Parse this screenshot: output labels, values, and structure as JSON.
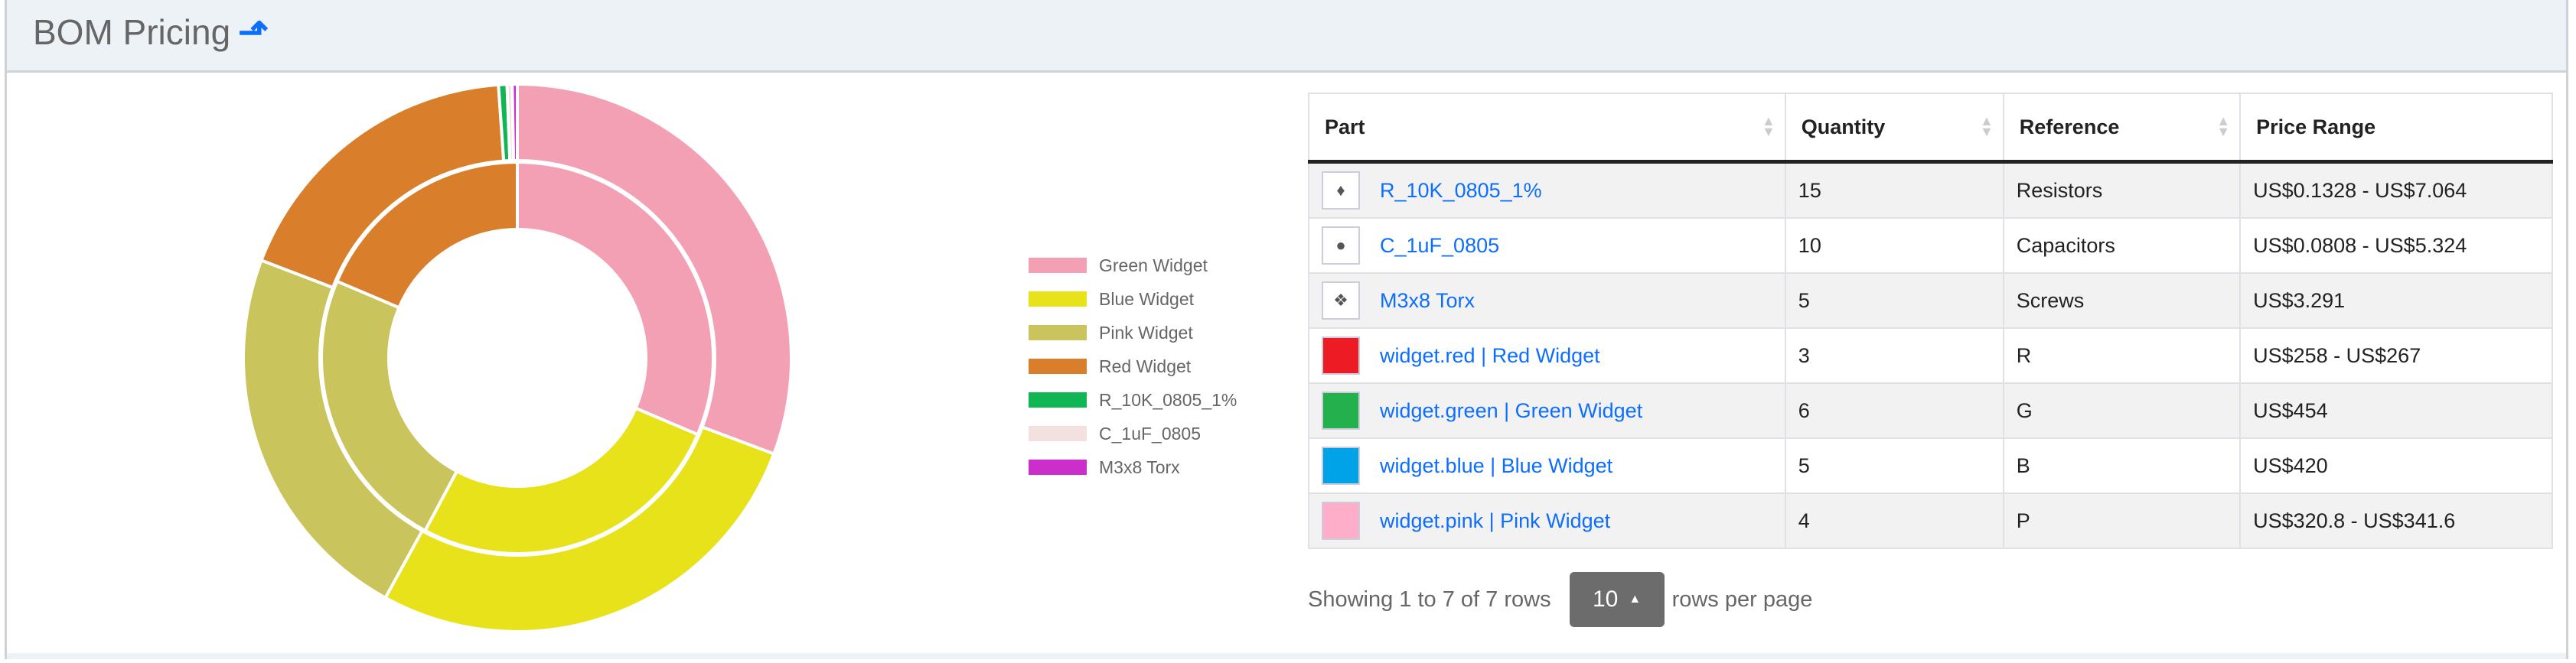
{
  "header": {
    "title": "BOM Pricing",
    "title_icon": "sort-arrow-up-icon"
  },
  "chart_data": {
    "type": "pie",
    "variant": "double-donut",
    "legend_position": "right",
    "legend": [
      {
        "label": "Green Widget",
        "color": "#f3a0b5"
      },
      {
        "label": "Blue Widget",
        "color": "#e8e21a"
      },
      {
        "label": "Pink Widget",
        "color": "#c9c55c"
      },
      {
        "label": "Red Widget",
        "color": "#d97e2a"
      },
      {
        "label": "R_10K_0805_1%",
        "color": "#10b554"
      },
      {
        "label": "C_1uF_0805",
        "color": "#f3e1e0"
      },
      {
        "label": "M3x8 Torx",
        "color": "#cc2ecc"
      }
    ],
    "outer_ring": {
      "labels": [
        "Green Widget",
        "Blue Widget",
        "Pink Widget",
        "Red Widget",
        "R_10K_0805_1%",
        "C_1uF_0805",
        "M3x8 Torx"
      ],
      "values": [
        30.7,
        27.3,
        22.8,
        18.1,
        0.5,
        0.3,
        0.3
      ]
    },
    "inner_ring": {
      "labels": [
        "Green Widget",
        "Blue Widget",
        "Pink Widget",
        "Red Widget"
      ],
      "values": [
        31.4,
        26.4,
        23.6,
        18.6
      ]
    }
  },
  "table": {
    "columns": [
      "Part",
      "Quantity",
      "Reference",
      "Price Range"
    ],
    "rows": [
      {
        "thumb": "resistor-image",
        "thumb_color": "",
        "part": "R_10K_0805_1%",
        "quantity": "15",
        "reference": "Resistors",
        "price": "US$0.1328 - US$7.064"
      },
      {
        "thumb": "capacitor-image",
        "thumb_color": "",
        "part": "C_1uF_0805",
        "quantity": "10",
        "reference": "Capacitors",
        "price": "US$0.0808 - US$5.324"
      },
      {
        "thumb": "screws-image",
        "thumb_color": "",
        "part": "M3x8 Torx",
        "quantity": "5",
        "reference": "Screws",
        "price": "US$3.291"
      },
      {
        "thumb": "color-swatch",
        "thumb_color": "#ed1c24",
        "part": "widget.red | Red Widget",
        "quantity": "3",
        "reference": "R",
        "price": "US$258 - US$267"
      },
      {
        "thumb": "color-swatch",
        "thumb_color": "#22b14c",
        "part": "widget.green | Green Widget",
        "quantity": "6",
        "reference": "G",
        "price": "US$454"
      },
      {
        "thumb": "color-swatch",
        "thumb_color": "#00a2e8",
        "part": "widget.blue | Blue Widget",
        "quantity": "5",
        "reference": "B",
        "price": "US$420"
      },
      {
        "thumb": "color-swatch",
        "thumb_color": "#ffaec9",
        "part": "widget.pink | Pink Widget",
        "quantity": "4",
        "reference": "P",
        "price": "US$320.8 - US$341.6"
      }
    ]
  },
  "pagination": {
    "summary": "Showing 1 to 7 of 7 rows",
    "page_size": "10",
    "suffix": "rows per page"
  }
}
